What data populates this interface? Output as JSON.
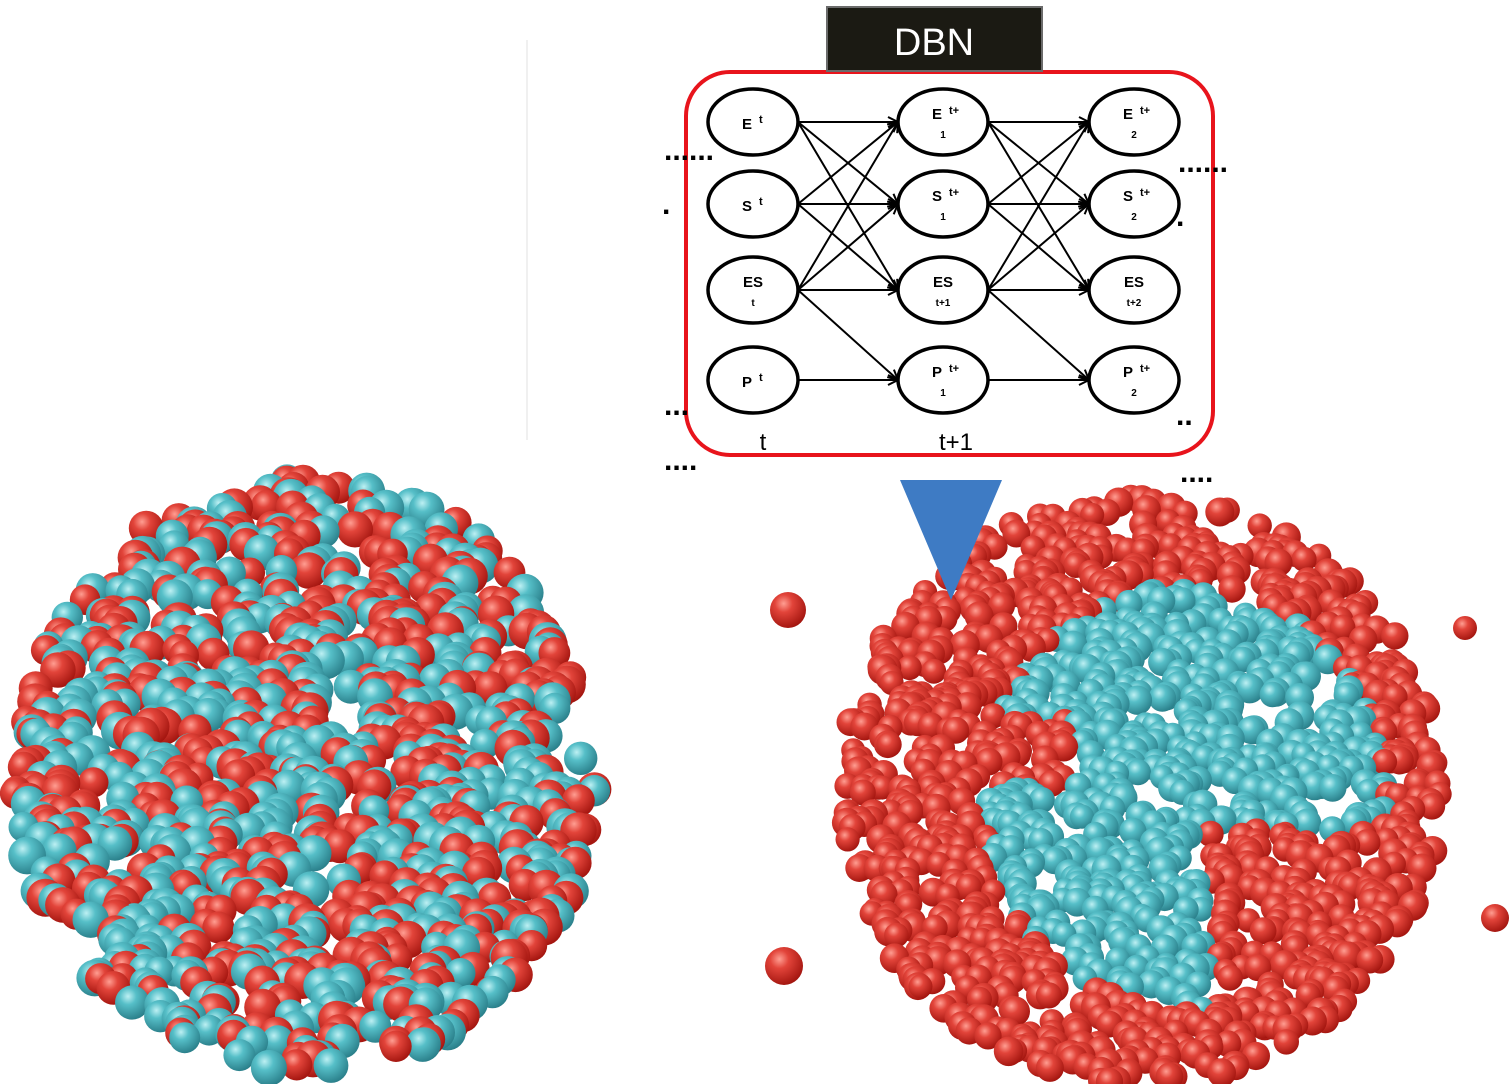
{
  "title": "DBN",
  "nodes": [
    {
      "id": "E_t",
      "main": "E",
      "sup": "t",
      "sub": ""
    },
    {
      "id": "S_t",
      "main": "S",
      "sup": "t",
      "sub": ""
    },
    {
      "id": "ES_t",
      "main": "ES",
      "sup": "",
      "sub": "t"
    },
    {
      "id": "P_t",
      "main": "P",
      "sup": "t",
      "sub": ""
    },
    {
      "id": "E_t1",
      "main": "E",
      "sup": "t+",
      "sub": "1"
    },
    {
      "id": "S_t1",
      "main": "S",
      "sup": "t+",
      "sub": "1"
    },
    {
      "id": "ES_t1",
      "main": "ES",
      "sup": "",
      "sub": "t+1"
    },
    {
      "id": "P_t1",
      "main": "P",
      "sup": "t+",
      "sub": "1"
    },
    {
      "id": "E_t2",
      "main": "E",
      "sup": "t+",
      "sub": "2"
    },
    {
      "id": "S_t2",
      "main": "S",
      "sup": "t+",
      "sub": "2"
    },
    {
      "id": "ES_t2",
      "main": "ES",
      "sup": "",
      "sub": "t+2"
    },
    {
      "id": "P_t2",
      "main": "P",
      "sup": "t+",
      "sub": "2"
    }
  ],
  "time_labels": [
    "t",
    "t+1"
  ],
  "ellipsis": {
    "left_top": "......",
    "left_dot": ".",
    "left_mid": "...",
    "left_bottom": "....",
    "right_top": "......",
    "right_dot": ".",
    "right_mid": "..",
    "right_bottom": "...."
  },
  "colors": {
    "frame": "#e8141c",
    "title_bg": "#1b1a13",
    "arrow": "#3e7bc4",
    "red_sphere": "#d8322c",
    "cyan_sphere": "#4db8c2"
  },
  "clusters": [
    {
      "name": "mixed-cluster",
      "red_fraction": 0.5
    },
    {
      "name": "separated-cluster",
      "red_fraction": 0.55
    }
  ]
}
